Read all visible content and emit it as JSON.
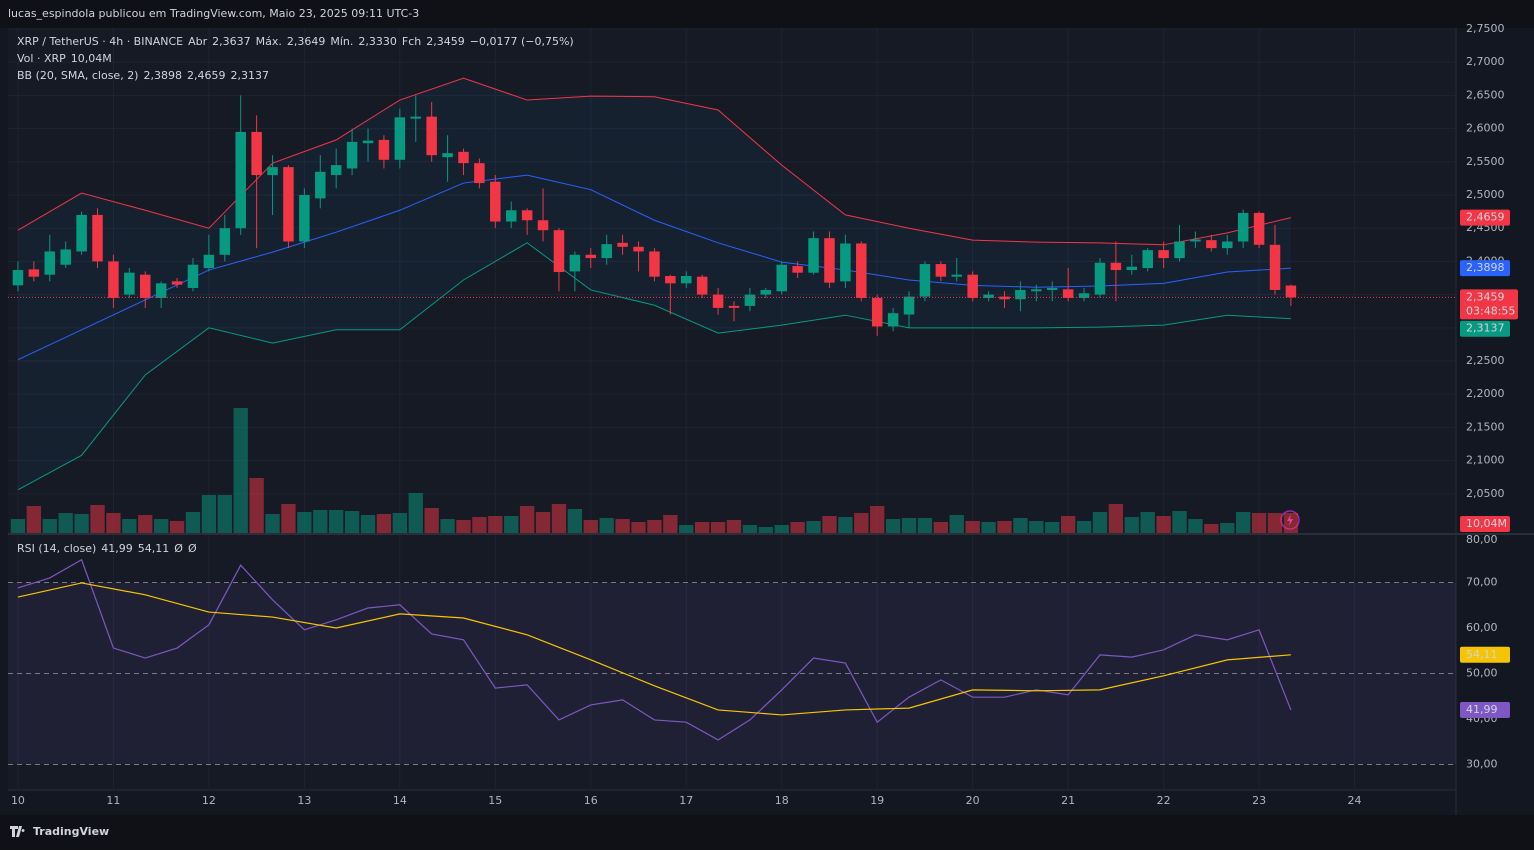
{
  "header": {
    "text": "lucas_espindola publicou em TradingView.com, Maio 23, 2025 09:11 UTC-3"
  },
  "footer": {
    "brand": "TradingView"
  },
  "chart_data": [
    {
      "type": "candlestick",
      "symbol": "XRP / TetherUS · 4h · BINANCE",
      "ohlc_legend": [
        {
          "label": "Abr",
          "value": "2,3637"
        },
        {
          "label": "Máx.",
          "value": "2,3649"
        },
        {
          "label": "Mín.",
          "value": "2,3330"
        },
        {
          "label": "Fch",
          "value": "2,3459"
        }
      ],
      "change": "−0,0177 (−0,75%)",
      "last_close_label": "2,3459",
      "countdown": "03:48:55",
      "up_color": "#089981",
      "down_color": "#f23645",
      "xlim": [
        9.8958,
        25.0625
      ],
      "xticks": [
        10,
        11,
        12,
        13,
        14,
        15,
        16,
        17,
        18,
        19,
        20,
        21,
        22,
        23,
        24
      ],
      "ylim": [
        1.991,
        2.7515
      ],
      "yticks": [
        {
          "value": 2.75,
          "label": "2,7500"
        },
        {
          "value": 2.7,
          "label": "2,7000"
        },
        {
          "value": 2.65,
          "label": "2,6500"
        },
        {
          "value": 2.6,
          "label": "2,6000"
        },
        {
          "value": 2.55,
          "label": "2,5500"
        },
        {
          "value": 2.5,
          "label": "2,5000"
        },
        {
          "value": 2.45,
          "label": "2,4500"
        },
        {
          "value": 2.4,
          "label": "2,4000"
        },
        {
          "value": 2.35,
          "label": "2,3500"
        },
        {
          "value": 2.3,
          "label": "2,3000"
        },
        {
          "value": 2.25,
          "label": "2,2500"
        },
        {
          "value": 2.2,
          "label": "2,2000"
        },
        {
          "value": 2.15,
          "label": "2,1500"
        },
        {
          "value": 2.1,
          "label": "2,1000"
        },
        {
          "value": 2.05,
          "label": "2,0500"
        }
      ],
      "grid": true,
      "x": [
        10,
        10.1667,
        10.3333,
        10.5,
        10.6667,
        10.8333,
        11,
        11.1667,
        11.3333,
        11.5,
        11.6667,
        11.8333,
        12,
        12.1667,
        12.3333,
        12.5,
        12.6667,
        12.8333,
        13,
        13.1667,
        13.3333,
        13.5,
        13.6667,
        13.8333,
        14,
        14.1667,
        14.3333,
        14.5,
        14.6667,
        14.8333,
        15,
        15.1667,
        15.3333,
        15.5,
        15.6667,
        15.8333,
        16,
        16.1667,
        16.3333,
        16.5,
        16.6667,
        16.8333,
        17,
        17.1667,
        17.3333,
        17.5,
        17.6667,
        17.8333,
        18,
        18.1667,
        18.3333,
        18.5,
        18.6667,
        18.8333,
        19,
        19.1667,
        19.3333,
        19.5,
        19.6667,
        19.8333,
        20,
        20.1667,
        20.3333,
        20.5,
        20.6667,
        20.8333,
        21,
        21.1667,
        21.3333,
        21.5,
        21.6667,
        21.8333,
        22,
        22.1667,
        22.3333,
        22.5,
        22.6667,
        22.8333,
        23,
        23.1667,
        23.3333
      ],
      "open": [
        2.364,
        2.388,
        2.38,
        2.395,
        2.415,
        2.47,
        2.4,
        2.35,
        2.38,
        2.345,
        2.37,
        2.36,
        2.39,
        2.41,
        2.45,
        2.595,
        2.53,
        2.542,
        2.43,
        2.495,
        2.53,
        2.54,
        2.578,
        2.583,
        2.553,
        2.615,
        2.618,
        2.557,
        2.565,
        2.548,
        2.52,
        2.46,
        2.477,
        2.462,
        2.447,
        2.385,
        2.41,
        2.405,
        2.428,
        2.422,
        2.415,
        2.378,
        2.367,
        2.377,
        2.35,
        2.333,
        2.333,
        2.35,
        2.355,
        2.393,
        2.383,
        2.435,
        2.37,
        2.427,
        2.345,
        2.302,
        2.32,
        2.347,
        2.396,
        2.377,
        2.38,
        2.345,
        2.347,
        2.343,
        2.355,
        2.357,
        2.358,
        2.345,
        2.35,
        2.398,
        2.387,
        2.39,
        2.417,
        2.405,
        2.43,
        2.432,
        2.42,
        2.43,
        2.473,
        2.425,
        2.3637
      ],
      "high": [
        2.4,
        2.4,
        2.44,
        2.43,
        2.475,
        2.48,
        2.41,
        2.39,
        2.385,
        2.37,
        2.375,
        2.405,
        2.44,
        2.47,
        2.65,
        2.62,
        2.56,
        2.545,
        2.51,
        2.56,
        2.57,
        2.6,
        2.6,
        2.59,
        2.63,
        2.65,
        2.64,
        2.59,
        2.57,
        2.555,
        2.53,
        2.49,
        2.48,
        2.51,
        2.45,
        2.415,
        2.42,
        2.44,
        2.44,
        2.43,
        2.42,
        2.38,
        2.385,
        2.38,
        2.36,
        2.34,
        2.36,
        2.36,
        2.4,
        2.4,
        2.445,
        2.445,
        2.44,
        2.43,
        2.35,
        2.33,
        2.355,
        2.4,
        2.4,
        2.405,
        2.385,
        2.355,
        2.355,
        2.37,
        2.365,
        2.37,
        2.39,
        2.36,
        2.405,
        2.43,
        2.41,
        2.42,
        2.43,
        2.455,
        2.445,
        2.44,
        2.44,
        2.478,
        2.475,
        2.455,
        2.3649
      ],
      "low": [
        2.355,
        2.37,
        2.37,
        2.39,
        2.41,
        2.39,
        2.33,
        2.345,
        2.33,
        2.33,
        2.36,
        2.355,
        2.385,
        2.4,
        2.44,
        2.42,
        2.47,
        2.42,
        2.42,
        2.48,
        2.51,
        2.53,
        2.55,
        2.54,
        2.54,
        2.58,
        2.55,
        2.52,
        2.53,
        2.51,
        2.45,
        2.45,
        2.44,
        2.43,
        2.355,
        2.355,
        2.39,
        2.395,
        2.41,
        2.385,
        2.37,
        2.32,
        2.36,
        2.345,
        2.32,
        2.31,
        2.325,
        2.345,
        2.35,
        2.375,
        2.38,
        2.36,
        2.36,
        2.34,
        2.288,
        2.295,
        2.3,
        2.34,
        2.37,
        2.37,
        2.34,
        2.34,
        2.33,
        2.325,
        2.34,
        2.34,
        2.34,
        2.34,
        2.345,
        2.34,
        2.38,
        2.385,
        2.39,
        2.4,
        2.42,
        2.415,
        2.41,
        2.42,
        2.42,
        2.35,
        2.333
      ],
      "close": [
        2.387,
        2.377,
        2.415,
        2.418,
        2.47,
        2.4,
        2.345,
        2.383,
        2.345,
        2.367,
        2.365,
        2.395,
        2.41,
        2.45,
        2.595,
        2.53,
        2.542,
        2.43,
        2.5,
        2.535,
        2.545,
        2.58,
        2.582,
        2.553,
        2.617,
        2.618,
        2.56,
        2.563,
        2.548,
        2.518,
        2.46,
        2.477,
        2.462,
        2.447,
        2.384,
        2.41,
        2.405,
        2.426,
        2.422,
        2.415,
        2.377,
        2.367,
        2.378,
        2.35,
        2.33,
        2.33,
        2.35,
        2.357,
        2.395,
        2.383,
        2.435,
        2.368,
        2.427,
        2.345,
        2.302,
        2.322,
        2.347,
        2.396,
        2.377,
        2.38,
        2.345,
        2.35,
        2.343,
        2.357,
        2.358,
        2.36,
        2.345,
        2.352,
        2.398,
        2.387,
        2.392,
        2.417,
        2.405,
        2.43,
        2.433,
        2.42,
        2.43,
        2.473,
        2.425,
        2.357,
        2.3459
      ],
      "volume": {
        "name": "Vol · XRP",
        "last_value_label": "10,04M",
        "values": [
          7,
          13.5,
          7,
          10,
          9.5,
          14,
          10,
          7,
          9,
          7,
          6,
          10.5,
          19,
          19,
          62.5,
          27.5,
          9.5,
          14.5,
          10.5,
          11.5,
          11.5,
          11,
          9,
          9.5,
          10,
          20,
          12.5,
          7,
          6.5,
          8,
          8.5,
          8.5,
          13.5,
          10.5,
          14.5,
          12,
          6.5,
          7.5,
          7,
          5.5,
          6.5,
          9,
          4,
          5.5,
          5.5,
          6.5,
          4,
          3,
          4,
          5.5,
          6,
          8.5,
          8,
          10,
          13.5,
          7,
          7.5,
          7.5,
          5.5,
          9,
          6,
          5.5,
          6,
          7.5,
          6,
          5.5,
          8.5,
          6,
          10.5,
          14.5,
          8,
          10.5,
          8.5,
          11,
          7,
          4.5,
          5,
          10.5,
          10,
          10,
          10.04
        ]
      },
      "bollinger": {
        "name": "BB (20, SMA, close, 2)",
        "x": [
          10,
          10.6667,
          11.3333,
          12,
          12.6667,
          13.3333,
          14,
          14.6667,
          15.3333,
          16,
          16.6667,
          17.3333,
          18,
          18.6667,
          19.3333,
          20,
          20.6667,
          21.3333,
          22,
          22.6667,
          23.3333
        ],
        "series": [
          {
            "color": "#2962ff",
            "last_value_label": "2,3898",
            "values": [
              2.252,
              2.297,
              2.342,
              2.387,
              2.414,
              2.444,
              2.477,
              2.518,
              2.53,
              2.508,
              2.462,
              2.428,
              2.399,
              2.387,
              2.372,
              2.364,
              2.361,
              2.363,
              2.367,
              2.384,
              2.3898
            ]
          },
          {
            "color": "#f23645",
            "last_value_label": "2,4659",
            "values": [
              2.447,
              2.503,
              2.477,
              2.45,
              2.548,
              2.583,
              2.643,
              2.676,
              2.643,
              2.649,
              2.648,
              2.628,
              2.545,
              2.47,
              2.45,
              2.432,
              2.429,
              2.428,
              2.425,
              2.443,
              2.4659
            ]
          },
          {
            "color": "#089981",
            "last_value_label": "2,3137",
            "values": [
              2.056,
              2.108,
              2.229,
              2.3,
              2.277,
              2.297,
              2.297,
              2.372,
              2.428,
              2.357,
              2.334,
              2.292,
              2.304,
              2.319,
              2.3,
              2.3,
              2.3,
              2.301,
              2.304,
              2.319,
              2.3137
            ]
          }
        ]
      }
    },
    {
      "type": "line",
      "name": "RSI (14, close)",
      "extra": [
        "Ø",
        "Ø"
      ],
      "xlim": [
        9.8958,
        25.0625
      ],
      "ylim": [
        24.4,
        80.44
      ],
      "yticks": [
        {
          "value": 80,
          "label": "80,00"
        },
        {
          "value": 70,
          "label": "70,00"
        },
        {
          "value": 60,
          "label": "60,00"
        },
        {
          "value": 50,
          "label": "50,00"
        },
        {
          "value": 40,
          "label": "40,00"
        },
        {
          "value": 30,
          "label": "30,00"
        }
      ],
      "bands": [
        70,
        50,
        30
      ],
      "series": [
        {
          "color": "#7e57c2",
          "last_value_label": "41,99",
          "x": [
            10,
            10.3333,
            10.6667,
            11,
            11.3333,
            11.6667,
            12,
            12.3333,
            12.6667,
            13,
            13.3333,
            13.6667,
            14,
            14.3333,
            14.6667,
            15,
            15.3333,
            15.6667,
            16,
            16.3333,
            16.6667,
            17,
            17.3333,
            17.6667,
            18,
            18.3333,
            18.6667,
            19,
            19.3333,
            19.6667,
            20,
            20.3333,
            20.6667,
            21,
            21.3333,
            21.6667,
            22,
            22.3333,
            22.6667,
            23,
            23.3333
          ],
          "values": [
            68.8,
            71.0,
            75,
            55.6,
            53.4,
            55.6,
            60.7,
            73.8,
            66.2,
            59.6,
            61.8,
            64.4,
            65.1,
            58.7,
            57.4,
            46.8,
            47.5,
            39.8,
            43.1,
            44.2,
            39.8,
            39.3,
            35.4,
            39.8,
            46.4,
            53.4,
            52.3,
            39.3,
            44.8,
            48.6,
            44.8,
            44.8,
            46.4,
            45.3,
            54.1,
            53.6,
            55.2,
            58.5,
            57.4,
            59.6,
            41.99
          ]
        },
        {
          "color": "#f7c500",
          "last_value_label": "54,11",
          "x": [
            10,
            10.6667,
            11.3333,
            12,
            12.6667,
            13.3333,
            14,
            14.6667,
            15.3333,
            16,
            16.6667,
            17.3333,
            18,
            18.6667,
            19.3333,
            20,
            20.6667,
            21.3333,
            22,
            22.6667,
            23.3333
          ],
          "values": [
            66.8,
            69.9,
            67.3,
            63.5,
            62.4,
            60,
            63.1,
            62.2,
            58.5,
            53,
            47.3,
            42,
            40.9,
            42,
            42.4,
            46.4,
            46.2,
            46.4,
            49.5,
            53,
            54.11
          ]
        }
      ]
    }
  ]
}
